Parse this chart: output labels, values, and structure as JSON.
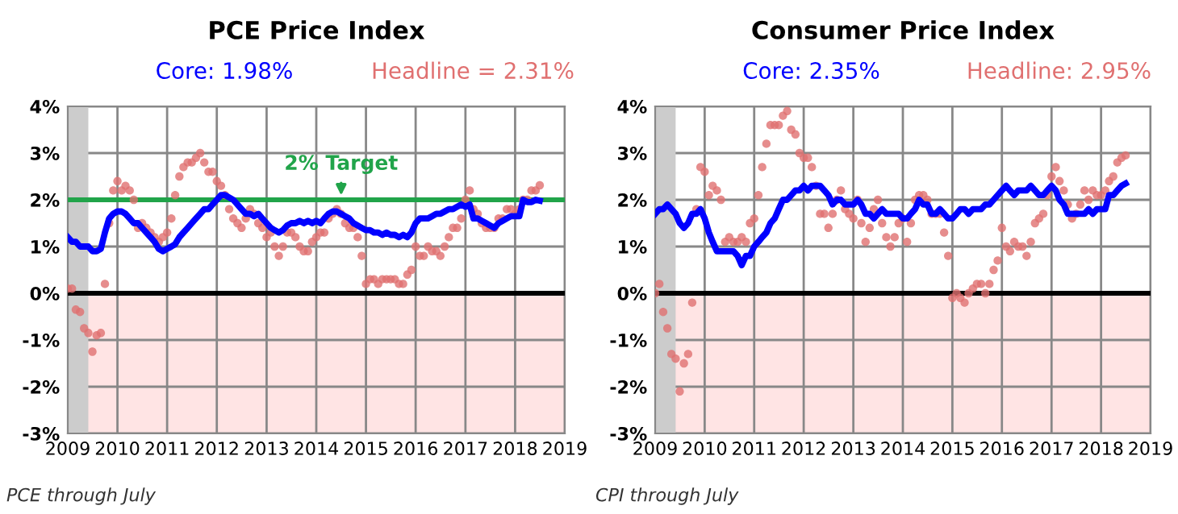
{
  "chart_data": [
    {
      "type": "line",
      "title": "PCE Price Index",
      "legend": "top",
      "grid": true,
      "xlim": [
        "2009-01",
        "2019-01"
      ],
      "xticks": [
        {
          "value": "2009",
          "label": "2009"
        },
        {
          "value": "2010",
          "label": "2010"
        },
        {
          "value": "2011",
          "label": "2011"
        },
        {
          "value": "2012",
          "label": "2012"
        },
        {
          "value": "2013",
          "label": "2013"
        },
        {
          "value": "2014",
          "label": "2014"
        },
        {
          "value": "2015",
          "label": "2015"
        },
        {
          "value": "2016",
          "label": "2016"
        },
        {
          "value": "2017",
          "label": "2017"
        },
        {
          "value": "2018",
          "label": "2018"
        },
        {
          "value": "2019",
          "label": "2019"
        }
      ],
      "ylim": [
        -3,
        4
      ],
      "yticks": [
        {
          "value": -3,
          "label": "-3%"
        },
        {
          "value": -2,
          "label": "-2%"
        },
        {
          "value": -1,
          "label": "-1%"
        },
        {
          "value": 0,
          "label": "0%"
        },
        {
          "value": 1,
          "label": "1%"
        },
        {
          "value": 2,
          "label": "2%"
        },
        {
          "value": 3,
          "label": "3%"
        },
        {
          "value": 4,
          "label": "4%"
        }
      ],
      "x": [
        "2009-01",
        "2009-02",
        "2009-03",
        "2009-04",
        "2009-05",
        "2009-06",
        "2009-07",
        "2009-08",
        "2009-09",
        "2009-10",
        "2009-11",
        "2009-12",
        "2010-01",
        "2010-02",
        "2010-03",
        "2010-04",
        "2010-05",
        "2010-06",
        "2010-07",
        "2010-08",
        "2010-09",
        "2010-10",
        "2010-11",
        "2010-12",
        "2011-01",
        "2011-02",
        "2011-03",
        "2011-04",
        "2011-05",
        "2011-06",
        "2011-07",
        "2011-08",
        "2011-09",
        "2011-10",
        "2011-11",
        "2011-12",
        "2012-01",
        "2012-02",
        "2012-03",
        "2012-04",
        "2012-05",
        "2012-06",
        "2012-07",
        "2012-08",
        "2012-09",
        "2012-10",
        "2012-11",
        "2012-12",
        "2013-01",
        "2013-02",
        "2013-03",
        "2013-04",
        "2013-05",
        "2013-06",
        "2013-07",
        "2013-08",
        "2013-09",
        "2013-10",
        "2013-11",
        "2013-12",
        "2014-01",
        "2014-02",
        "2014-03",
        "2014-04",
        "2014-05",
        "2014-06",
        "2014-07",
        "2014-08",
        "2014-09",
        "2014-10",
        "2014-11",
        "2014-12",
        "2015-01",
        "2015-02",
        "2015-03",
        "2015-04",
        "2015-05",
        "2015-06",
        "2015-07",
        "2015-08",
        "2015-09",
        "2015-10",
        "2015-11",
        "2015-12",
        "2016-01",
        "2016-02",
        "2016-03",
        "2016-04",
        "2016-05",
        "2016-06",
        "2016-07",
        "2016-08",
        "2016-09",
        "2016-10",
        "2016-11",
        "2016-12",
        "2017-01",
        "2017-02",
        "2017-03",
        "2017-04",
        "2017-05",
        "2017-06",
        "2017-07",
        "2017-08",
        "2017-09",
        "2017-10",
        "2017-11",
        "2017-12",
        "2018-01",
        "2018-02",
        "2018-03",
        "2018-04",
        "2018-05",
        "2018-06",
        "2018-07"
      ],
      "series": [
        {
          "name": "Headline = 2.31%",
          "type": "scatter",
          "marker": "circle",
          "color": "#e07070",
          "values": [
            0.1,
            0.1,
            -0.35,
            -0.4,
            -0.75,
            -0.85,
            -1.25,
            -0.9,
            -0.85,
            0.2,
            1.5,
            2.2,
            2.4,
            2.2,
            2.3,
            2.2,
            2.0,
            1.4,
            1.5,
            1.4,
            1.3,
            1.2,
            1.1,
            1.2,
            1.3,
            1.6,
            2.1,
            2.5,
            2.7,
            2.8,
            2.8,
            2.9,
            3.0,
            2.8,
            2.6,
            2.6,
            2.4,
            2.3,
            2.1,
            1.8,
            1.6,
            1.5,
            1.4,
            1.6,
            1.8,
            1.7,
            1.5,
            1.4,
            1.2,
            1.3,
            1.0,
            0.8,
            1.0,
            1.3,
            1.3,
            1.2,
            1.0,
            0.9,
            0.9,
            1.1,
            1.2,
            1.3,
            1.3,
            1.6,
            1.7,
            1.8,
            1.7,
            1.5,
            1.4,
            1.4,
            1.2,
            0.8,
            0.2,
            0.3,
            0.3,
            0.2,
            0.3,
            0.3,
            0.3,
            0.3,
            0.2,
            0.2,
            0.4,
            0.5,
            1.0,
            0.8,
            0.8,
            1.0,
            0.9,
            0.9,
            0.8,
            1.0,
            1.2,
            1.4,
            1.4,
            1.6,
            2.0,
            2.2,
            1.8,
            1.7,
            1.5,
            1.4,
            1.4,
            1.4,
            1.6,
            1.6,
            1.8,
            1.8,
            1.7,
            1.8,
            2.0,
            2.0,
            2.2,
            2.2,
            2.31
          ]
        },
        {
          "name": "Core: 1.98%",
          "color": "#0000ff",
          "values": [
            1.2,
            1.1,
            1.1,
            1.0,
            1.0,
            1.0,
            0.9,
            0.9,
            0.95,
            1.3,
            1.6,
            1.7,
            1.75,
            1.75,
            1.7,
            1.6,
            1.5,
            1.5,
            1.4,
            1.3,
            1.2,
            1.1,
            0.95,
            0.9,
            0.95,
            1.0,
            1.05,
            1.2,
            1.3,
            1.4,
            1.5,
            1.6,
            1.7,
            1.8,
            1.8,
            1.9,
            2.0,
            2.1,
            2.1,
            2.05,
            2.0,
            1.9,
            1.8,
            1.7,
            1.7,
            1.65,
            1.7,
            1.6,
            1.5,
            1.4,
            1.35,
            1.3,
            1.35,
            1.45,
            1.5,
            1.5,
            1.55,
            1.5,
            1.55,
            1.5,
            1.55,
            1.5,
            1.6,
            1.7,
            1.75,
            1.75,
            1.7,
            1.65,
            1.6,
            1.5,
            1.45,
            1.4,
            1.35,
            1.35,
            1.3,
            1.3,
            1.25,
            1.3,
            1.25,
            1.25,
            1.2,
            1.25,
            1.2,
            1.3,
            1.5,
            1.6,
            1.6,
            1.6,
            1.65,
            1.7,
            1.7,
            1.75,
            1.8,
            1.8,
            1.85,
            1.9,
            1.85,
            1.9,
            1.6,
            1.6,
            1.55,
            1.5,
            1.45,
            1.4,
            1.5,
            1.55,
            1.6,
            1.65,
            1.65,
            1.65,
            2.0,
            1.95,
            1.95,
            2.0,
            1.98
          ]
        }
      ],
      "bands": [
        {
          "axis": "x",
          "from": "2009-01",
          "to": "2009-06",
          "color": "#cccccc"
        },
        {
          "axis": "y",
          "from": -3,
          "to": 0,
          "color": "#ffe4e4"
        }
      ],
      "ref_lines": [
        {
          "axis": "y",
          "value": 0,
          "color": "#000000"
        },
        {
          "axis": "y",
          "value": 2,
          "label": "2% Target",
          "color": "#21a44a"
        }
      ],
      "annotations": [
        "PCE through July"
      ]
    },
    {
      "type": "line",
      "title": "Consumer Price Index",
      "legend": "top",
      "grid": true,
      "xlim": [
        "2009-01",
        "2019-01"
      ],
      "xticks": [
        {
          "value": "2009",
          "label": "2009"
        },
        {
          "value": "2010",
          "label": "2010"
        },
        {
          "value": "2011",
          "label": "2011"
        },
        {
          "value": "2012",
          "label": "2012"
        },
        {
          "value": "2013",
          "label": "2013"
        },
        {
          "value": "2014",
          "label": "2014"
        },
        {
          "value": "2015",
          "label": "2015"
        },
        {
          "value": "2016",
          "label": "2016"
        },
        {
          "value": "2017",
          "label": "2017"
        },
        {
          "value": "2018",
          "label": "2018"
        },
        {
          "value": "2019",
          "label": "2019"
        }
      ],
      "ylim": [
        -3,
        4
      ],
      "yticks": [
        {
          "value": -3,
          "label": "-3%"
        },
        {
          "value": -2,
          "label": "-2%"
        },
        {
          "value": -1,
          "label": "-1%"
        },
        {
          "value": 0,
          "label": "0%"
        },
        {
          "value": 1,
          "label": "1%"
        },
        {
          "value": 2,
          "label": "2%"
        },
        {
          "value": 3,
          "label": "3%"
        },
        {
          "value": 4,
          "label": "4%"
        }
      ],
      "x": [
        "2009-01",
        "2009-02",
        "2009-03",
        "2009-04",
        "2009-05",
        "2009-06",
        "2009-07",
        "2009-08",
        "2009-09",
        "2009-10",
        "2009-11",
        "2009-12",
        "2010-01",
        "2010-02",
        "2010-03",
        "2010-04",
        "2010-05",
        "2010-06",
        "2010-07",
        "2010-08",
        "2010-09",
        "2010-10",
        "2010-11",
        "2010-12",
        "2011-01",
        "2011-02",
        "2011-03",
        "2011-04",
        "2011-05",
        "2011-06",
        "2011-07",
        "2011-08",
        "2011-09",
        "2011-10",
        "2011-11",
        "2011-12",
        "2012-01",
        "2012-02",
        "2012-03",
        "2012-04",
        "2012-05",
        "2012-06",
        "2012-07",
        "2012-08",
        "2012-09",
        "2012-10",
        "2012-11",
        "2012-12",
        "2013-01",
        "2013-02",
        "2013-03",
        "2013-04",
        "2013-05",
        "2013-06",
        "2013-07",
        "2013-08",
        "2013-09",
        "2013-10",
        "2013-11",
        "2013-12",
        "2014-01",
        "2014-02",
        "2014-03",
        "2014-04",
        "2014-05",
        "2014-06",
        "2014-07",
        "2014-08",
        "2014-09",
        "2014-10",
        "2014-11",
        "2014-12",
        "2015-01",
        "2015-02",
        "2015-03",
        "2015-04",
        "2015-05",
        "2015-06",
        "2015-07",
        "2015-08",
        "2015-09",
        "2015-10",
        "2015-11",
        "2015-12",
        "2016-01",
        "2016-02",
        "2016-03",
        "2016-04",
        "2016-05",
        "2016-06",
        "2016-07",
        "2016-08",
        "2016-09",
        "2016-10",
        "2016-11",
        "2016-12",
        "2017-01",
        "2017-02",
        "2017-03",
        "2017-04",
        "2017-05",
        "2017-06",
        "2017-07",
        "2017-08",
        "2017-09",
        "2017-10",
        "2017-11",
        "2017-12",
        "2018-01",
        "2018-02",
        "2018-03",
        "2018-04",
        "2018-05",
        "2018-06",
        "2018-07"
      ],
      "series": [
        {
          "name": "Headline: 2.95%",
          "type": "scatter",
          "marker": "circle",
          "color": "#e07070",
          "values": [
            0.0,
            0.2,
            -0.4,
            -0.75,
            -1.3,
            -1.4,
            -2.1,
            -1.5,
            -1.3,
            -0.2,
            1.8,
            2.7,
            2.6,
            2.1,
            2.3,
            2.2,
            2.0,
            1.1,
            1.2,
            1.1,
            1.1,
            1.2,
            1.1,
            1.5,
            1.6,
            2.1,
            2.7,
            3.2,
            3.6,
            3.6,
            3.6,
            3.8,
            3.9,
            3.5,
            3.4,
            3.0,
            2.9,
            2.9,
            2.7,
            2.3,
            1.7,
            1.7,
            1.4,
            1.7,
            2.0,
            2.2,
            1.8,
            1.7,
            1.6,
            2.0,
            1.5,
            1.1,
            1.4,
            1.8,
            2.0,
            1.5,
            1.2,
            1.0,
            1.2,
            1.5,
            1.6,
            1.1,
            1.5,
            2.0,
            2.1,
            2.1,
            2.0,
            1.7,
            1.7,
            1.7,
            1.3,
            0.8,
            -0.1,
            0.0,
            -0.1,
            -0.2,
            0.0,
            0.1,
            0.2,
            0.2,
            0.0,
            0.2,
            0.5,
            0.7,
            1.4,
            1.0,
            0.9,
            1.1,
            1.0,
            1.0,
            0.8,
            1.1,
            1.5,
            1.6,
            1.7,
            2.1,
            2.5,
            2.7,
            2.4,
            2.2,
            1.9,
            1.6,
            1.7,
            1.9,
            2.2,
            2.0,
            2.2,
            2.1,
            2.1,
            2.2,
            2.4,
            2.5,
            2.8,
            2.9,
            2.95
          ]
        },
        {
          "name": "Core: 2.35%",
          "color": "#0000ff",
          "values": [
            1.7,
            1.8,
            1.8,
            1.9,
            1.8,
            1.7,
            1.5,
            1.4,
            1.5,
            1.7,
            1.7,
            1.8,
            1.6,
            1.3,
            1.1,
            0.9,
            0.9,
            0.9,
            0.9,
            0.9,
            0.8,
            0.6,
            0.8,
            0.8,
            1.0,
            1.1,
            1.2,
            1.3,
            1.5,
            1.6,
            1.8,
            2.0,
            2.0,
            2.1,
            2.2,
            2.2,
            2.3,
            2.2,
            2.3,
            2.3,
            2.3,
            2.2,
            2.1,
            1.9,
            2.0,
            2.0,
            1.9,
            1.9,
            1.9,
            2.0,
            1.9,
            1.7,
            1.7,
            1.6,
            1.7,
            1.8,
            1.7,
            1.7,
            1.7,
            1.7,
            1.6,
            1.6,
            1.7,
            1.8,
            2.0,
            1.9,
            1.9,
            1.7,
            1.7,
            1.8,
            1.7,
            1.6,
            1.6,
            1.7,
            1.8,
            1.8,
            1.7,
            1.8,
            1.8,
            1.8,
            1.9,
            1.9,
            2.0,
            2.1,
            2.2,
            2.3,
            2.2,
            2.1,
            2.2,
            2.2,
            2.2,
            2.3,
            2.2,
            2.1,
            2.1,
            2.2,
            2.3,
            2.2,
            2.0,
            1.9,
            1.7,
            1.7,
            1.7,
            1.7,
            1.7,
            1.8,
            1.7,
            1.8,
            1.8,
            1.8,
            2.1,
            2.1,
            2.2,
            2.3,
            2.35
          ]
        }
      ],
      "bands": [
        {
          "axis": "x",
          "from": "2009-01",
          "to": "2009-06",
          "color": "#cccccc"
        },
        {
          "axis": "y",
          "from": -3,
          "to": 0,
          "color": "#ffe4e4"
        }
      ],
      "ref_lines": [
        {
          "axis": "y",
          "value": 0,
          "color": "#000000"
        }
      ],
      "annotations": [
        "CPI through July"
      ]
    }
  ]
}
